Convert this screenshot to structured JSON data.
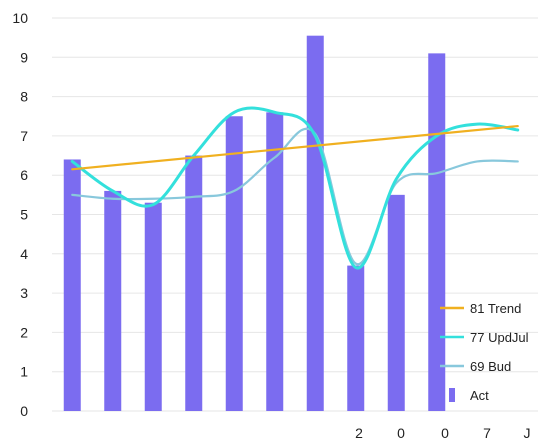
{
  "chart_data": {
    "type": "bar",
    "ylim": [
      0,
      10
    ],
    "yticks": [
      "0",
      "1",
      "2",
      "3",
      "4",
      "5",
      "6",
      "7",
      "8",
      "9",
      "10"
    ],
    "xticks": [
      "2",
      "0",
      "0",
      "7",
      "J"
    ],
    "grid": true,
    "legend_position": "bottom-right",
    "series": [
      {
        "name": "81 Trend",
        "type": "line",
        "color": "#f0b020",
        "values": [
          6.15,
          6.25,
          6.35,
          6.45,
          6.55,
          6.65,
          6.75,
          6.85,
          6.95,
          7.05,
          7.15,
          7.25
        ]
      },
      {
        "name": "77 UpdJul",
        "type": "line",
        "color": "#33e0dc",
        "values": [
          6.35,
          5.6,
          5.25,
          6.5,
          7.6,
          7.6,
          7.0,
          3.65,
          5.9,
          7.0,
          7.3,
          7.15
        ]
      },
      {
        "name": "69 Bud",
        "type": "line",
        "color": "#88c8dc",
        "values": [
          5.5,
          5.4,
          5.4,
          5.45,
          5.6,
          6.45,
          7.05,
          3.75,
          5.8,
          6.05,
          6.35,
          6.35
        ]
      },
      {
        "name": "Act",
        "type": "bar",
        "color": "#7b6cf0",
        "values": [
          6.4,
          5.6,
          5.3,
          6.5,
          7.5,
          7.6,
          9.55,
          3.7,
          5.5,
          9.1,
          null,
          null
        ]
      }
    ]
  }
}
